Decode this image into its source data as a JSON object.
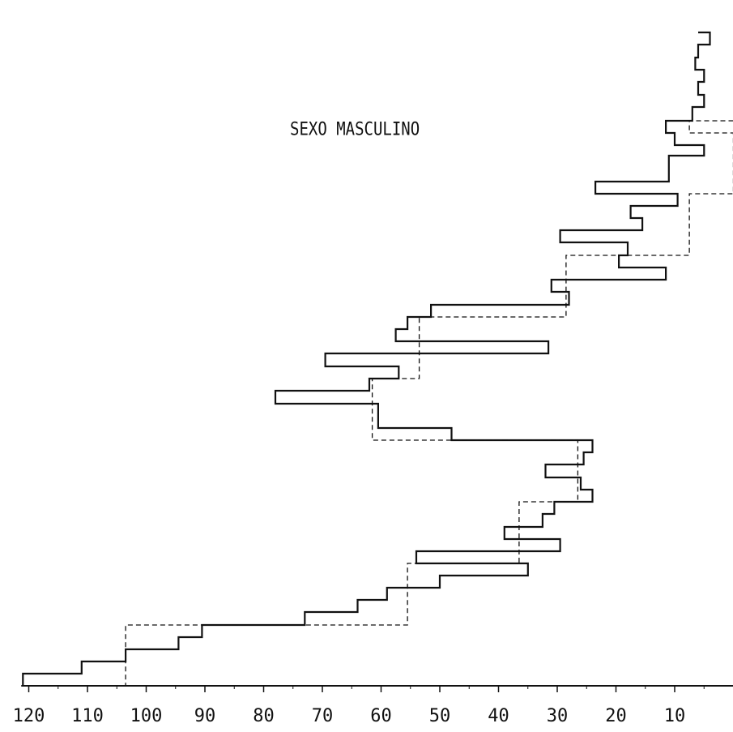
{
  "chart_data": {
    "type": "line",
    "title": "SEXO MASCULINO",
    "xlabel": "",
    "ylabel": "",
    "x_axis": {
      "reversed": true,
      "xlim": [
        121,
        0
      ],
      "tick_values": [
        120,
        110,
        100,
        90,
        80,
        70,
        60,
        50,
        40,
        30,
        20,
        10
      ],
      "tick_labels": [
        "120",
        "110",
        "100",
        "90",
        "80",
        "70",
        "60",
        "50",
        "40",
        "30",
        "20",
        "10"
      ]
    },
    "grid": false,
    "series": [
      {
        "style": "solid-step",
        "points": [
          [
            6,
            40
          ],
          [
            4,
            40
          ],
          [
            4,
            55
          ],
          [
            6,
            55
          ],
          [
            6,
            71
          ],
          [
            6.5,
            71
          ],
          [
            6.5,
            86
          ],
          [
            5,
            86
          ],
          [
            5,
            101
          ],
          [
            6,
            101
          ],
          [
            6,
            117
          ],
          [
            5,
            117
          ],
          [
            5,
            132
          ],
          [
            7,
            132
          ],
          [
            7,
            149
          ],
          [
            11.5,
            149
          ],
          [
            11.5,
            164
          ],
          [
            10,
            164
          ],
          [
            10,
            179
          ],
          [
            5,
            179
          ],
          [
            5,
            192
          ],
          [
            11,
            192
          ],
          [
            11,
            224
          ],
          [
            23.5,
            224
          ],
          [
            23.5,
            239
          ],
          [
            9.5,
            239
          ],
          [
            9.5,
            254
          ],
          [
            17.5,
            254
          ],
          [
            17.5,
            269
          ],
          [
            15.5,
            269
          ],
          [
            15.5,
            284
          ],
          [
            29.5,
            284
          ],
          [
            29.5,
            299
          ],
          [
            18,
            299
          ],
          [
            18,
            315
          ],
          [
            19.5,
            315
          ],
          [
            19.5,
            330
          ],
          [
            11.5,
            330
          ],
          [
            11.5,
            345
          ],
          [
            31,
            345
          ],
          [
            31,
            360
          ],
          [
            28,
            360
          ],
          [
            28,
            376
          ],
          [
            51.5,
            376
          ],
          [
            51.5,
            391
          ],
          [
            55.5,
            391
          ],
          [
            55.5,
            406
          ],
          [
            57.5,
            406
          ],
          [
            57.5,
            421
          ],
          [
            31.5,
            421
          ],
          [
            31.5,
            436
          ],
          [
            69.5,
            436
          ],
          [
            69.5,
            452
          ],
          [
            57,
            452
          ],
          [
            57,
            467
          ],
          [
            62,
            467
          ],
          [
            62,
            482
          ],
          [
            78,
            482
          ],
          [
            78,
            498
          ],
          [
            60.5,
            498
          ],
          [
            60.5,
            528
          ],
          [
            48,
            528
          ],
          [
            48,
            543
          ],
          [
            24,
            543
          ],
          [
            24,
            558
          ],
          [
            25.5,
            558
          ],
          [
            25.5,
            573
          ],
          [
            32,
            573
          ],
          [
            32,
            589
          ],
          [
            26,
            589
          ],
          [
            26,
            604
          ],
          [
            24,
            604
          ],
          [
            24,
            619
          ],
          [
            30.5,
            619
          ],
          [
            30.5,
            634
          ],
          [
            32.5,
            634
          ],
          [
            32.5,
            650
          ],
          [
            39,
            650
          ],
          [
            39,
            665
          ],
          [
            29.5,
            665
          ],
          [
            29.5,
            680
          ],
          [
            54,
            680
          ],
          [
            54,
            695
          ],
          [
            35,
            695
          ],
          [
            35,
            710
          ],
          [
            50,
            710
          ],
          [
            50,
            725
          ],
          [
            59,
            725
          ],
          [
            59,
            740
          ],
          [
            64,
            740
          ],
          [
            64,
            755
          ],
          [
            73,
            755
          ],
          [
            73,
            771
          ],
          [
            90.5,
            771
          ],
          [
            90.5,
            786
          ],
          [
            94.5,
            786
          ],
          [
            94.5,
            801
          ],
          [
            103.5,
            801
          ],
          [
            103.5,
            816
          ],
          [
            111,
            816
          ],
          [
            111,
            831
          ],
          [
            121,
            831
          ],
          [
            121,
            846
          ]
        ]
      },
      {
        "style": "dashed-step",
        "points": [
          [
            0,
            149
          ],
          [
            7.5,
            149
          ],
          [
            7.5,
            164
          ],
          [
            0,
            164
          ],
          [
            0,
            239
          ],
          [
            7.5,
            239
          ],
          [
            7.5,
            315
          ],
          [
            28.5,
            315
          ],
          [
            28.5,
            391
          ],
          [
            53.5,
            391
          ],
          [
            53.5,
            467
          ],
          [
            61.5,
            467
          ],
          [
            61.5,
            543
          ],
          [
            26.5,
            543
          ],
          [
            26.5,
            619
          ],
          [
            36.5,
            619
          ],
          [
            36.5,
            695
          ],
          [
            55.5,
            695
          ],
          [
            55.5,
            771
          ],
          [
            103.5,
            771
          ],
          [
            103.5,
            846
          ]
        ]
      }
    ]
  }
}
